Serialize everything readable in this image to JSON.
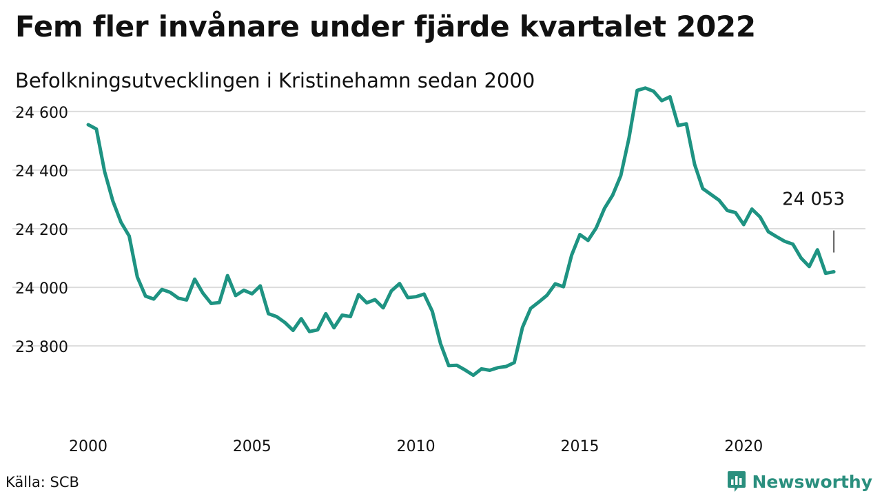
{
  "title": "Fem fler invånare under fjärde kvartalet 2022",
  "subtitle": "Befolkningsutvecklingen i Kristinehamn sedan 2000",
  "source": "Källa: SCB",
  "brand": {
    "name": "Newsworthy",
    "color": "#2a8f7e",
    "icon": "bar-chart-logo-icon"
  },
  "chart_data": {
    "type": "line",
    "title": "Fem fler invånare under fjärde kvartalet 2022",
    "subtitle": "Befolkningsutvecklingen i Kristinehamn sedan 2000",
    "xlabel": "",
    "ylabel": "",
    "xlim": [
      2000,
      2023
    ],
    "ylim": [
      23650,
      24750
    ],
    "x_ticks": [
      2000,
      2005,
      2010,
      2015,
      2020
    ],
    "x_tick_labels": [
      "2000",
      "2005",
      "2010",
      "2015",
      "2020"
    ],
    "y_ticks": [
      23800,
      24000,
      24200,
      24400,
      24600
    ],
    "y_tick_labels": [
      "23 800",
      "24 000",
      "24 200",
      "24 400",
      "24 600"
    ],
    "grid": "horizontal",
    "line_color": "#1e9382",
    "annotation": {
      "x": 2022.75,
      "y": 24053,
      "label": "24 053"
    },
    "series": [
      {
        "x": [
          2000.0,
          2000.25,
          2000.5,
          2000.75,
          2001.0,
          2001.25,
          2001.5,
          2001.75,
          2002.0,
          2002.25,
          2002.5,
          2002.75,
          2003.0,
          2003.25,
          2003.5,
          2003.75,
          2004.0,
          2004.25,
          2004.5,
          2004.75,
          2005.0,
          2005.25,
          2005.5,
          2005.75,
          2006.0,
          2006.25,
          2006.5,
          2006.75,
          2007.0,
          2007.25,
          2007.5,
          2007.75,
          2008.0,
          2008.25,
          2008.5,
          2008.75,
          2009.0,
          2009.25,
          2009.5,
          2009.75,
          2010.0,
          2010.25,
          2010.5,
          2010.75,
          2011.0,
          2011.25,
          2011.5,
          2011.75,
          2012.0,
          2012.25,
          2012.5,
          2012.75,
          2013.0,
          2013.25,
          2013.5,
          2013.75,
          2014.0,
          2014.25,
          2014.5,
          2014.75,
          2015.0,
          2015.25,
          2015.5,
          2015.75,
          2016.0,
          2016.25,
          2016.5,
          2016.75,
          2017.0,
          2017.25,
          2017.5,
          2017.75,
          2018.0,
          2018.25,
          2018.5,
          2018.75,
          2019.0,
          2019.25,
          2019.5,
          2019.75,
          2020.0,
          2020.25,
          2020.5,
          2020.75,
          2021.0,
          2021.25,
          2021.5,
          2021.75,
          2022.0,
          2022.25,
          2022.5,
          2022.75
        ],
        "values": [
          24555,
          24540,
          24395,
          24295,
          24222,
          24175,
          24035,
          23970,
          23960,
          23993,
          23983,
          23963,
          23957,
          24028,
          23980,
          23945,
          23948,
          24040,
          23972,
          23990,
          23978,
          24005,
          23910,
          23900,
          23880,
          23853,
          23893,
          23849,
          23855,
          23910,
          23862,
          23905,
          23900,
          23975,
          23947,
          23958,
          23930,
          23988,
          24013,
          23965,
          23968,
          23977,
          23918,
          23808,
          23733,
          23734,
          23718,
          23700,
          23722,
          23717,
          23726,
          23730,
          23743,
          23863,
          23928,
          23950,
          23973,
          24012,
          24002,
          24110,
          24180,
          24160,
          24203,
          24269,
          24314,
          24381,
          24509,
          24672,
          24680,
          24669,
          24637,
          24650,
          24552,
          24558,
          24420,
          24337,
          24317,
          24297,
          24262,
          24255,
          24214,
          24267,
          24240,
          24190,
          24173,
          24157,
          24147,
          24100,
          24071,
          24128,
          24048,
          24053
        ]
      }
    ]
  }
}
